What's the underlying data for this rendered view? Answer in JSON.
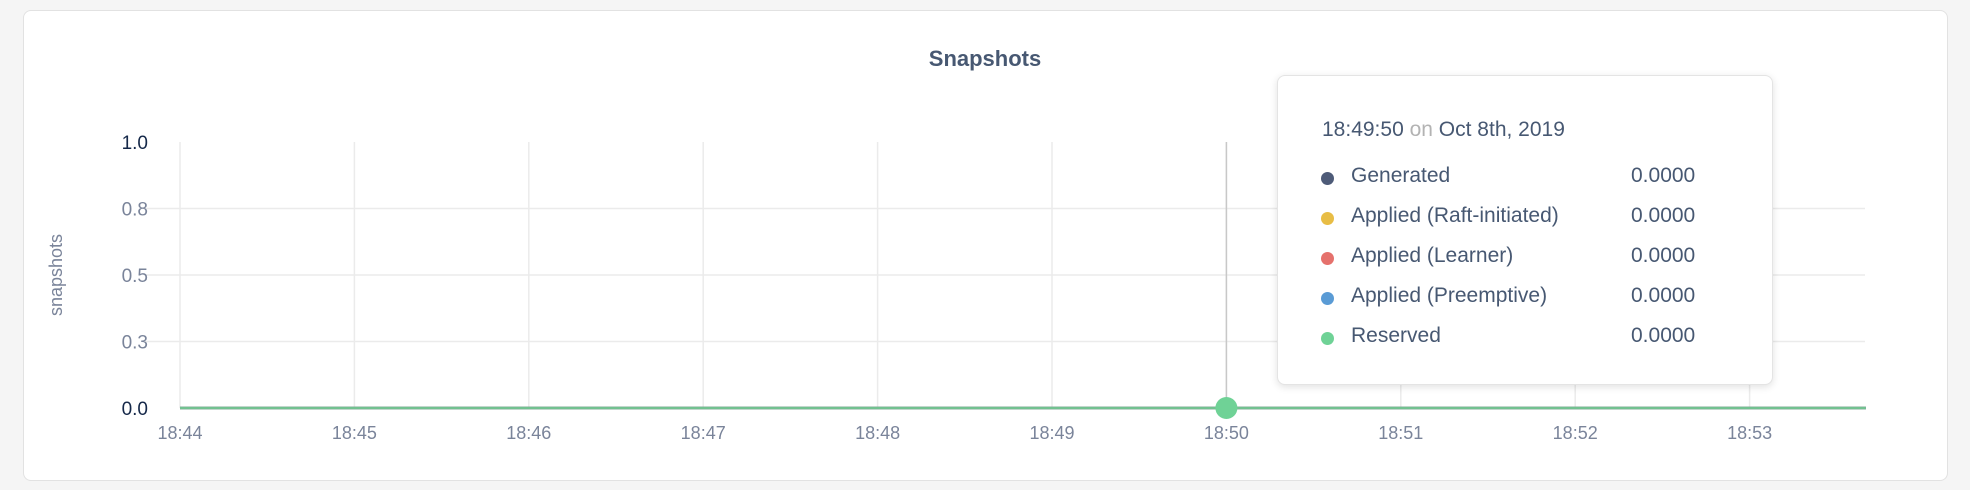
{
  "chart_data": {
    "type": "line",
    "title": "Snapshots",
    "ylabel": "snapshots",
    "xlabel": "",
    "ylim": [
      0,
      1.0
    ],
    "y_ticks": [
      "0.0",
      "0.3",
      "0.5",
      "0.8",
      "1.0"
    ],
    "y_tick_values": [
      0,
      0.25,
      0.5,
      0.75,
      1.0
    ],
    "x_ticks": [
      "18:44",
      "18:45",
      "18:46",
      "18:47",
      "18:48",
      "18:49",
      "18:50",
      "18:51",
      "18:52",
      "18:53"
    ],
    "xlim": [
      "18:44",
      "18:53:40"
    ],
    "grid": true,
    "series": [
      {
        "name": "Generated",
        "color": "#4e5b78",
        "values": [
          0,
          0,
          0,
          0,
          0,
          0,
          0,
          0,
          0,
          0,
          0
        ]
      },
      {
        "name": "Applied (Raft-initiated)",
        "color": "#e8bd45",
        "values": [
          0,
          0,
          0,
          0,
          0,
          0,
          0,
          0,
          0,
          0,
          0
        ]
      },
      {
        "name": "Applied (Learner)",
        "color": "#e5716c",
        "values": [
          0,
          0,
          0,
          0,
          0,
          0,
          0,
          0,
          0,
          0,
          0
        ]
      },
      {
        "name": "Applied (Preemptive)",
        "color": "#5a9bd5",
        "values": [
          0,
          0,
          0,
          0,
          0,
          0,
          0,
          0,
          0,
          0,
          0
        ]
      },
      {
        "name": "Reserved",
        "color": "#6fd296",
        "values": [
          0,
          0,
          0,
          0,
          0,
          0,
          0,
          0,
          0,
          0,
          0
        ]
      }
    ],
    "x": [
      "18:44",
      "18:45",
      "18:46",
      "18:47",
      "18:48",
      "18:49",
      "18:50",
      "18:51",
      "18:52",
      "18:53",
      "18:53:40"
    ],
    "hover_x": "18:50"
  },
  "tooltip": {
    "time": "18:49:50",
    "on": "on",
    "date": "Oct 8th, 2019",
    "rows": [
      {
        "label": "Generated",
        "value": "0.0000",
        "color": "#4e5b78"
      },
      {
        "label": "Applied (Raft-initiated)",
        "value": "0.0000",
        "color": "#e8bd45"
      },
      {
        "label": "Applied (Learner)",
        "value": "0.0000",
        "color": "#e5716c"
      },
      {
        "label": "Applied (Preemptive)",
        "value": "0.0000",
        "color": "#5a9bd5"
      },
      {
        "label": "Reserved",
        "value": "0.0000",
        "color": "#6fd296"
      }
    ]
  }
}
